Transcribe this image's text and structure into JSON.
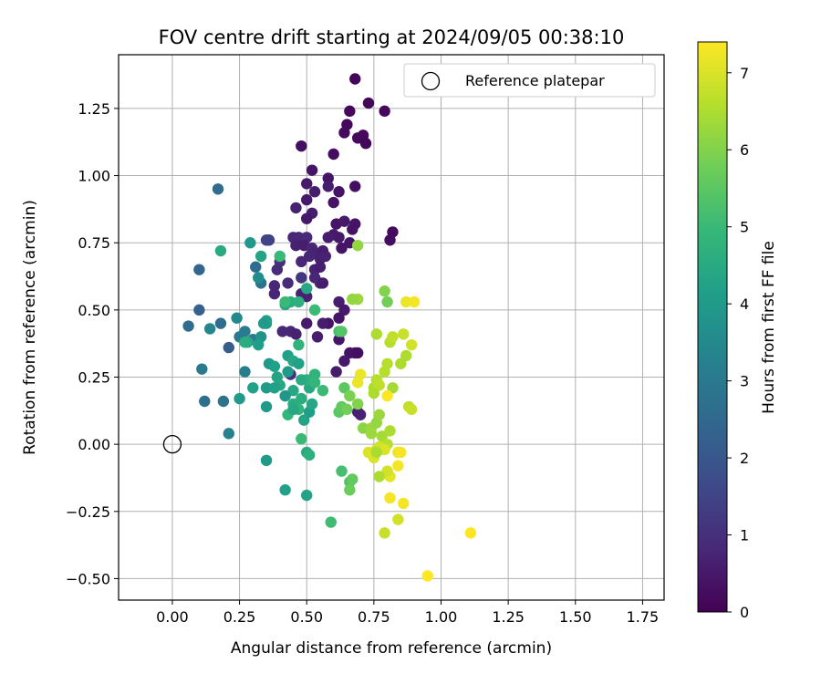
{
  "chart_data": {
    "type": "scatter",
    "title": "FOV centre drift starting at 2024/09/05 00:38:10",
    "xlabel": "Angular distance from reference (arcmin)",
    "ylabel": "Rotation from reference (arcmin)",
    "xlim": [
      -0.2,
      1.83
    ],
    "ylim": [
      -0.58,
      1.45
    ],
    "grid": true,
    "legend": {
      "placement": "top-right",
      "entries": [
        {
          "label": "Reference platepar",
          "marker": "open-circle"
        }
      ]
    },
    "x_ticks": [
      {
        "value": 0.0,
        "label": "0.00"
      },
      {
        "value": 0.25,
        "label": "0.25"
      },
      {
        "value": 0.5,
        "label": "0.50"
      },
      {
        "value": 0.75,
        "label": "0.75"
      },
      {
        "value": 1.0,
        "label": "1.00"
      },
      {
        "value": 1.25,
        "label": "1.25"
      },
      {
        "value": 1.5,
        "label": "1.50"
      },
      {
        "value": 1.75,
        "label": "1.75"
      }
    ],
    "y_ticks": [
      {
        "value": -0.5,
        "label": "−0.50"
      },
      {
        "value": -0.25,
        "label": "−0.25"
      },
      {
        "value": 0.0,
        "label": "0.00"
      },
      {
        "value": 0.25,
        "label": "0.25"
      },
      {
        "value": 0.5,
        "label": "0.50"
      },
      {
        "value": 0.75,
        "label": "0.75"
      },
      {
        "value": 1.0,
        "label": "1.00"
      },
      {
        "value": 1.25,
        "label": "1.25"
      }
    ],
    "colorbar": {
      "label": "Hours from first FF file",
      "colormap": "viridis",
      "range": [
        0,
        7.4
      ],
      "ticks": [
        {
          "value": 0,
          "label": "0"
        },
        {
          "value": 1,
          "label": "1"
        },
        {
          "value": 2,
          "label": "2"
        },
        {
          "value": 3,
          "label": "3"
        },
        {
          "value": 4,
          "label": "4"
        },
        {
          "value": 5,
          "label": "5"
        },
        {
          "value": 6,
          "label": "6"
        },
        {
          "value": 7,
          "label": "7"
        }
      ]
    },
    "reference_point": {
      "x": 0.0,
      "y": 0.0
    },
    "points": [
      [
        0.68,
        1.36,
        0.1
      ],
      [
        0.73,
        1.27,
        0.1
      ],
      [
        0.66,
        1.24,
        0.15
      ],
      [
        0.79,
        1.24,
        0.15
      ],
      [
        0.65,
        1.19,
        0.15
      ],
      [
        0.64,
        1.16,
        0.2
      ],
      [
        0.71,
        1.15,
        0.15
      ],
      [
        0.69,
        1.14,
        0.2
      ],
      [
        0.72,
        1.12,
        0.1
      ],
      [
        0.48,
        1.11,
        0.3
      ],
      [
        0.6,
        1.08,
        0.25
      ],
      [
        0.52,
        1.02,
        0.4
      ],
      [
        0.58,
        0.99,
        0.4
      ],
      [
        0.5,
        0.97,
        0.5
      ],
      [
        0.58,
        0.96,
        0.6
      ],
      [
        0.68,
        0.96,
        0.3
      ],
      [
        0.53,
        0.94,
        0.6
      ],
      [
        0.62,
        0.94,
        0.4
      ],
      [
        0.5,
        0.91,
        0.5
      ],
      [
        0.6,
        0.9,
        0.4
      ],
      [
        0.46,
        0.88,
        0.7
      ],
      [
        0.52,
        0.86,
        0.6
      ],
      [
        0.5,
        0.84,
        0.5
      ],
      [
        0.61,
        0.82,
        0.4
      ],
      [
        0.64,
        0.83,
        0.5
      ],
      [
        0.68,
        0.82,
        0.4
      ],
      [
        0.82,
        0.79,
        0.2
      ],
      [
        0.81,
        0.76,
        0.25
      ],
      [
        0.6,
        0.78,
        0.5
      ],
      [
        0.67,
        0.8,
        0.4
      ],
      [
        0.62,
        0.77,
        0.5
      ],
      [
        0.58,
        0.77,
        0.6
      ],
      [
        0.66,
        0.75,
        0.4
      ],
      [
        0.63,
        0.73,
        0.4
      ],
      [
        0.45,
        0.77,
        0.8
      ],
      [
        0.47,
        0.77,
        0.8
      ],
      [
        0.5,
        0.77,
        0.9
      ],
      [
        0.46,
        0.74,
        0.7
      ],
      [
        0.49,
        0.74,
        0.6
      ],
      [
        0.52,
        0.73,
        0.8
      ],
      [
        0.53,
        0.71,
        0.7
      ],
      [
        0.56,
        0.72,
        0.6
      ],
      [
        0.51,
        0.7,
        0.8
      ],
      [
        0.55,
        0.69,
        0.7
      ],
      [
        0.57,
        0.7,
        0.7
      ],
      [
        0.48,
        0.68,
        0.8
      ],
      [
        0.4,
        0.68,
        1.0
      ],
      [
        0.39,
        0.65,
        0.9
      ],
      [
        0.53,
        0.65,
        0.7
      ],
      [
        0.55,
        0.66,
        0.6
      ],
      [
        0.48,
        0.62,
        1.2
      ],
      [
        0.53,
        0.62,
        0.8
      ],
      [
        0.55,
        0.6,
        0.8
      ],
      [
        0.56,
        0.6,
        0.6
      ],
      [
        0.43,
        0.6,
        0.9
      ],
      [
        0.38,
        0.59,
        0.8
      ],
      [
        0.38,
        0.56,
        0.8
      ],
      [
        0.48,
        0.56,
        0.7
      ],
      [
        0.5,
        0.55,
        0.7
      ],
      [
        0.62,
        0.53,
        0.6
      ],
      [
        0.64,
        0.5,
        0.5
      ],
      [
        0.62,
        0.47,
        0.4
      ],
      [
        0.58,
        0.45,
        0.4
      ],
      [
        0.56,
        0.45,
        0.6
      ],
      [
        0.5,
        0.45,
        0.5
      ],
      [
        0.44,
        0.42,
        0.8
      ],
      [
        0.41,
        0.42,
        0.8
      ],
      [
        0.46,
        0.41,
        0.7
      ],
      [
        0.54,
        0.4,
        0.6
      ],
      [
        0.62,
        0.39,
        0.4
      ],
      [
        0.66,
        0.34,
        0.4
      ],
      [
        0.68,
        0.34,
        0.4
      ],
      [
        0.69,
        0.34,
        0.3
      ],
      [
        0.64,
        0.31,
        0.5
      ],
      [
        0.61,
        0.27,
        0.6
      ],
      [
        0.44,
        0.26,
        1.0
      ],
      [
        0.7,
        0.11,
        0.7
      ],
      [
        0.69,
        0.12,
        0.7
      ],
      [
        0.36,
        0.76,
        1.4
      ],
      [
        0.35,
        0.76,
        1.5
      ],
      [
        0.17,
        0.95,
        2.6
      ],
      [
        0.1,
        0.65,
        2.4
      ],
      [
        0.1,
        0.5,
        2.3
      ],
      [
        0.06,
        0.44,
        2.6
      ],
      [
        0.18,
        0.45,
        2.6
      ],
      [
        0.21,
        0.36,
        2.2
      ],
      [
        0.31,
        0.66,
        2.6
      ],
      [
        0.33,
        0.6,
        2.8
      ],
      [
        0.27,
        0.42,
        3.1
      ],
      [
        0.25,
        0.4,
        3.0
      ],
      [
        0.3,
        0.39,
        3.0
      ],
      [
        0.11,
        0.28,
        3.0
      ],
      [
        0.12,
        0.16,
        2.7
      ],
      [
        0.19,
        0.16,
        2.8
      ],
      [
        0.21,
        0.04,
        3.3
      ],
      [
        0.27,
        0.27,
        3.2
      ],
      [
        0.24,
        0.47,
        3.5
      ],
      [
        0.18,
        0.72,
        4.5
      ],
      [
        0.29,
        0.75,
        4.0
      ],
      [
        0.33,
        0.4,
        3.8
      ],
      [
        0.35,
        0.45,
        3.9
      ],
      [
        0.14,
        0.43,
        3.4
      ],
      [
        0.32,
        0.62,
        3.6
      ],
      [
        0.33,
        0.7,
        4.3
      ],
      [
        0.4,
        0.7,
        5.0
      ],
      [
        0.44,
        0.53,
        4.6
      ],
      [
        0.47,
        0.53,
        4.7
      ],
      [
        0.5,
        0.58,
        4.4
      ],
      [
        0.53,
        0.5,
        5.0
      ],
      [
        0.42,
        0.52,
        4.4
      ],
      [
        0.32,
        0.37,
        4.1
      ],
      [
        0.35,
        0.46,
        4.2
      ],
      [
        0.28,
        0.38,
        4.4
      ],
      [
        0.34,
        0.45,
        4.0
      ],
      [
        0.36,
        0.3,
        4.0
      ],
      [
        0.38,
        0.29,
        4.2
      ],
      [
        0.39,
        0.25,
        4.3
      ],
      [
        0.4,
        0.22,
        4.4
      ],
      [
        0.43,
        0.33,
        4.2
      ],
      [
        0.45,
        0.31,
        4.4
      ],
      [
        0.43,
        0.27,
        4.0
      ],
      [
        0.47,
        0.3,
        4.2
      ],
      [
        0.45,
        0.2,
        4.4
      ],
      [
        0.42,
        0.18,
        3.9
      ],
      [
        0.35,
        0.21,
        4.0
      ],
      [
        0.38,
        0.21,
        4.2
      ],
      [
        0.35,
        0.14,
        4.0
      ],
      [
        0.45,
        0.15,
        4.6
      ],
      [
        0.47,
        0.13,
        4.8
      ],
      [
        0.43,
        0.11,
        4.9
      ],
      [
        0.45,
        0.13,
        4.4
      ],
      [
        0.48,
        0.17,
        4.6
      ],
      [
        0.49,
        0.09,
        4.3
      ],
      [
        0.51,
        0.12,
        4.1
      ],
      [
        0.52,
        0.15,
        4.4
      ],
      [
        0.51,
        0.21,
        4.4
      ],
      [
        0.5,
        0.24,
        4.7
      ],
      [
        0.53,
        0.26,
        4.8
      ],
      [
        0.53,
        0.23,
        4.9
      ],
      [
        0.56,
        0.2,
        5.0
      ],
      [
        0.48,
        0.24,
        4.5
      ],
      [
        0.47,
        0.37,
        4.8
      ],
      [
        0.48,
        0.02,
        5.0
      ],
      [
        0.5,
        -0.03,
        4.5
      ],
      [
        0.51,
        -0.04,
        4.7
      ],
      [
        0.42,
        -0.17,
        4.2
      ],
      [
        0.5,
        -0.19,
        4.3
      ],
      [
        0.59,
        -0.29,
        5.1
      ],
      [
        0.63,
        -0.1,
        5.2
      ],
      [
        0.66,
        -0.14,
        5.3
      ],
      [
        0.67,
        -0.13,
        5.6
      ],
      [
        0.66,
        -0.17,
        5.7
      ],
      [
        0.35,
        -0.06,
        4.0
      ],
      [
        0.25,
        0.17,
        4.0
      ],
      [
        0.3,
        0.21,
        4.2
      ],
      [
        0.27,
        0.38,
        4.6
      ],
      [
        0.42,
        0.53,
        5.0
      ],
      [
        0.62,
        0.42,
        5.2
      ],
      [
        0.63,
        0.42,
        5.4
      ],
      [
        0.64,
        0.21,
        5.5
      ],
      [
        0.62,
        0.12,
        5.5
      ],
      [
        0.63,
        0.14,
        5.6
      ],
      [
        0.65,
        0.13,
        5.8
      ],
      [
        0.66,
        0.18,
        5.9
      ],
      [
        0.69,
        0.15,
        6.0
      ],
      [
        0.71,
        0.06,
        6.1
      ],
      [
        0.74,
        0.06,
        6.3
      ],
      [
        0.74,
        0.04,
        6.3
      ],
      [
        0.76,
        0.08,
        6.2
      ],
      [
        0.77,
        0.11,
        6.3
      ],
      [
        0.75,
        0.21,
        6.5
      ],
      [
        0.76,
        0.24,
        6.6
      ],
      [
        0.77,
        0.22,
        6.7
      ],
      [
        0.75,
        0.19,
        6.5
      ],
      [
        0.79,
        0.27,
        6.6
      ],
      [
        0.82,
        0.21,
        6.4
      ],
      [
        0.85,
        0.3,
        6.5
      ],
      [
        0.87,
        0.33,
        6.5
      ],
      [
        0.8,
        0.3,
        6.6
      ],
      [
        0.81,
        0.38,
        6.6
      ],
      [
        0.82,
        0.4,
        6.7
      ],
      [
        0.76,
        0.41,
        6.5
      ],
      [
        0.86,
        0.41,
        6.8
      ],
      [
        0.89,
        0.37,
        6.9
      ],
      [
        0.87,
        0.53,
        7.2
      ],
      [
        0.9,
        0.53,
        7.3
      ],
      [
        0.79,
        0.57,
        6.0
      ],
      [
        0.8,
        0.53,
        5.8
      ],
      [
        0.69,
        0.54,
        6.3
      ],
      [
        0.67,
        0.54,
        6.2
      ],
      [
        0.69,
        0.74,
        6.2
      ],
      [
        0.78,
        0.03,
        6.4
      ],
      [
        0.8,
        0.0,
        6.6
      ],
      [
        0.81,
        0.05,
        6.5
      ],
      [
        0.73,
        -0.03,
        7.0
      ],
      [
        0.75,
        -0.05,
        7.0
      ],
      [
        0.76,
        -0.02,
        6.8
      ],
      [
        0.77,
        -0.01,
        6.9
      ],
      [
        0.79,
        -0.02,
        7.0
      ],
      [
        0.81,
        -0.12,
        7.1
      ],
      [
        0.8,
        -0.1,
        6.9
      ],
      [
        0.77,
        -0.12,
        6.5
      ],
      [
        0.76,
        -0.03,
        6.5
      ],
      [
        0.84,
        -0.03,
        7.2
      ],
      [
        0.85,
        -0.03,
        7.3
      ],
      [
        0.84,
        -0.08,
        7.3
      ],
      [
        0.81,
        -0.2,
        7.3
      ],
      [
        0.86,
        -0.22,
        7.3
      ],
      [
        0.84,
        -0.28,
        6.9
      ],
      [
        0.79,
        -0.33,
        6.8
      ],
      [
        0.88,
        0.14,
        6.7
      ],
      [
        0.89,
        0.13,
        6.8
      ],
      [
        0.7,
        0.26,
        7.2
      ],
      [
        0.69,
        0.23,
        7.2
      ],
      [
        0.8,
        0.18,
        7.4
      ],
      [
        0.95,
        -0.49,
        7.4
      ],
      [
        1.11,
        -0.33,
        7.4
      ]
    ]
  }
}
